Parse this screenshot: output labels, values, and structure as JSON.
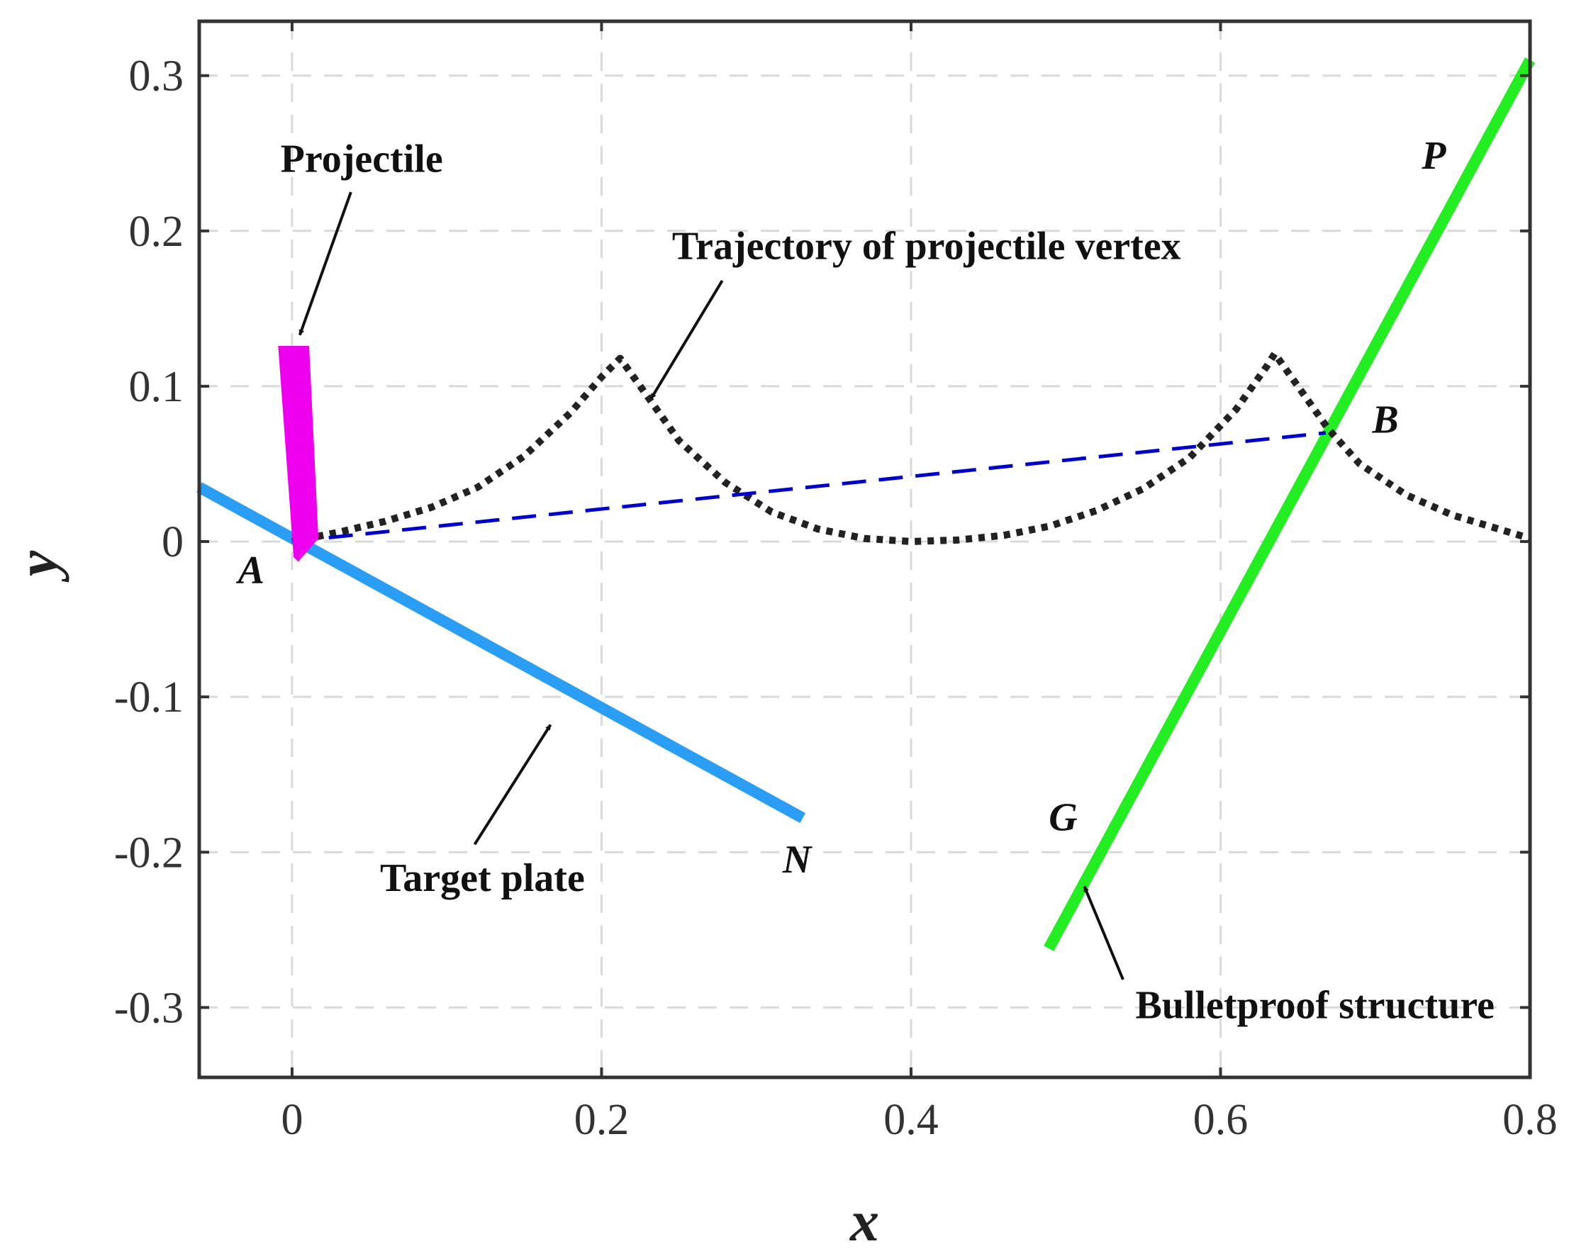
{
  "chart_data": {
    "type": "line",
    "title": "",
    "xlabel": "x",
    "ylabel": "y",
    "xlim": [
      -0.06,
      0.8
    ],
    "ylim": [
      -0.345,
      0.335
    ],
    "grid": true,
    "xticks": [
      0,
      0.2,
      0.4,
      0.6,
      0.8
    ],
    "yticks": [
      -0.3,
      -0.2,
      -0.1,
      0,
      0.1,
      0.2,
      0.3
    ],
    "xtick_labels": [
      "0",
      "0.2",
      "0.4",
      "0.6",
      "0.8"
    ],
    "ytick_labels": [
      "-0.3",
      "-0.2",
      "-0.1",
      "0",
      "0.1",
      "0.2",
      "0.3"
    ],
    "colors": {
      "projectile": "#ee00ee",
      "target_plate": "#2a9df4",
      "bulletproof": "#22ee22",
      "trajectory": "#222222",
      "ab_line": "#0000cc",
      "axes": "#333333",
      "grid": "#d9d9d9"
    },
    "series": [
      {
        "name": "Projectile",
        "style": "filled-shape",
        "x": [
          -0.009,
          0.011,
          0.017,
          0.004,
          0.001,
          -0.009
        ],
        "y": [
          0.126,
          0.126,
          0.002,
          -0.013,
          -0.01,
          0.126
        ]
      },
      {
        "name": "Target plate",
        "style": "solid",
        "x": [
          -0.06,
          0.33
        ],
        "y": [
          0.035,
          -0.178
        ]
      },
      {
        "name": "Bulletproof structure",
        "style": "solid",
        "x": [
          0.489,
          0.8
        ],
        "y": [
          -0.262,
          0.31
        ]
      },
      {
        "name": "Trajectory of projectile vertex",
        "style": "dotted",
        "x": [
          0,
          0.03,
          0.06,
          0.09,
          0.12,
          0.15,
          0.18,
          0.2,
          0.212,
          0.225,
          0.25,
          0.28,
          0.31,
          0.34,
          0.37,
          0.4,
          0.43,
          0.46,
          0.49,
          0.52,
          0.55,
          0.58,
          0.61,
          0.63,
          0.635,
          0.65,
          0.67,
          0.69,
          0.72,
          0.75,
          0.78,
          0.8
        ],
        "y": [
          0,
          0.006,
          0.013,
          0.022,
          0.035,
          0.055,
          0.083,
          0.106,
          0.118,
          0.1,
          0.065,
          0.038,
          0.019,
          0.008,
          0.002,
          0,
          0.001,
          0.004,
          0.01,
          0.02,
          0.034,
          0.054,
          0.085,
          0.113,
          0.121,
          0.1,
          0.072,
          0.05,
          0.03,
          0.017,
          0.008,
          0.002
        ]
      },
      {
        "name": "A-B line",
        "style": "dashed",
        "x": [
          0,
          0.668
        ],
        "y": [
          0,
          0.07
        ]
      }
    ],
    "annotations": [
      {
        "text": "Projectile",
        "x": 0.045,
        "y": 0.238,
        "anchor": "middle",
        "arrow_from": [
          0.038,
          0.225
        ],
        "arrow_to": [
          0.005,
          0.133
        ]
      },
      {
        "text": "Trajectory of projectile vertex",
        "x": 0.41,
        "y": 0.182,
        "anchor": "middle",
        "arrow_from": [
          0.278,
          0.168
        ],
        "arrow_to": [
          0.232,
          0.092
        ]
      },
      {
        "text": "Target plate",
        "x": 0.123,
        "y": -0.225,
        "anchor": "middle",
        "arrow_from": [
          0.118,
          -0.195
        ],
        "arrow_to": [
          0.167,
          -0.118
        ]
      },
      {
        "text": "Bulletproof structure",
        "x": 0.545,
        "y": -0.307,
        "anchor": "start",
        "arrow_from": [
          0.537,
          -0.282
        ],
        "arrow_to": [
          0.512,
          -0.222
        ]
      }
    ],
    "points": [
      {
        "label": "A",
        "x": -0.035,
        "y": -0.027
      },
      {
        "label": "B",
        "x": 0.698,
        "y": 0.07
      },
      {
        "label": "N",
        "x": 0.317,
        "y": -0.213
      },
      {
        "label": "G",
        "x": 0.489,
        "y": -0.186
      },
      {
        "label": "P",
        "x": 0.73,
        "y": 0.24
      }
    ]
  }
}
